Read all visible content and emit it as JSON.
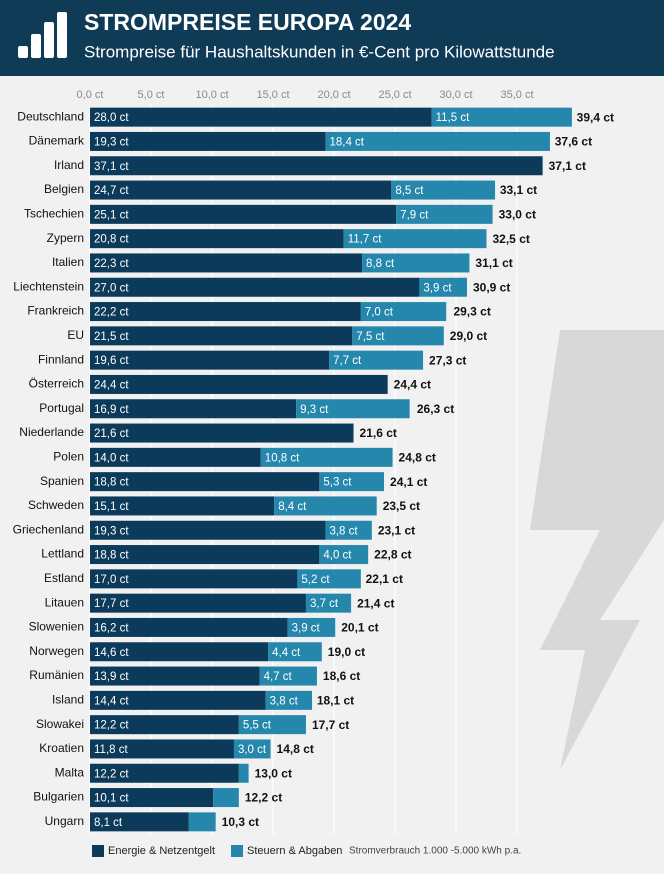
{
  "chart_data": {
    "type": "stacked-bar-horizontal",
    "title": "STROMPREISE EUROPA 2024",
    "subtitle": "Strompreise für Haushaltskunden in €-Cent pro Kilowattstunde",
    "note": "Stromverbrauch 1.000 -5.000 kWh p.a.",
    "categories": [
      "Deutschland",
      "Dänemark",
      "Irland",
      "Belgien",
      "Tschechien",
      "Zypern",
      "Italien",
      "Liechtenstein",
      "Frankreich",
      "EU",
      "Finnland",
      "Österreich",
      "Portugal",
      "Niederlande",
      "Polen",
      "Spanien",
      "Schweden",
      "Griechenland",
      "Lettland",
      "Estland",
      "Litauen",
      "Slowenien",
      "Norwegen",
      "Rumänien",
      "Island",
      "Slowakei",
      "Kroatien",
      "Malta",
      "Bulgarien",
      "Ungarn"
    ],
    "series": [
      {
        "name": "Energie & Netzentgelt",
        "color": "#0c3a5b",
        "values": [
          28.0,
          19.3,
          37.1,
          24.7,
          25.1,
          20.8,
          22.3,
          27.0,
          22.2,
          21.5,
          19.6,
          24.4,
          16.9,
          21.6,
          14.0,
          18.8,
          15.1,
          19.3,
          18.8,
          17.0,
          17.7,
          16.2,
          14.6,
          13.9,
          14.4,
          12.2,
          11.8,
          12.2,
          10.1,
          8.1
        ],
        "value_labels": [
          "28,0 ct",
          "19,3 ct",
          "37,1 ct",
          "24,7 ct",
          "25,1 ct",
          "20,8 ct",
          "22,3 ct",
          "27,0 ct",
          "22,2 ct",
          "21,5 ct",
          "19,6 ct",
          "24,4 ct",
          "16,9 ct",
          "21,6 ct",
          "14,0 ct",
          "18,8 ct",
          "15,1 ct",
          "19,3 ct",
          "18,8 ct",
          "17,0 ct",
          "17,7 ct",
          "16,2 ct",
          "14,6 ct",
          "13,9 ct",
          "14,4 ct",
          "12,2 ct",
          "11,8 ct",
          "12,2 ct",
          "10,1 ct",
          "8,1 ct"
        ]
      },
      {
        "name": "Steuern & Abgaben",
        "color": "#2687ad",
        "values": [
          11.5,
          18.4,
          null,
          8.5,
          7.9,
          11.7,
          8.8,
          3.9,
          7.0,
          7.5,
          7.7,
          null,
          9.3,
          null,
          10.8,
          5.3,
          8.4,
          3.8,
          4.0,
          5.2,
          3.7,
          3.9,
          4.4,
          4.7,
          3.8,
          5.5,
          3.0,
          0.8,
          2.1,
          2.2
        ],
        "value_labels": [
          "11,5 ct",
          "18,4 ct",
          null,
          "8,5 ct",
          "7,9 ct",
          "11,7 ct",
          "8,8 ct",
          "3,9 ct",
          "7,0 ct",
          "7,5 ct",
          "7,7 ct",
          null,
          "9,3 ct",
          null,
          "10,8 ct",
          "5,3 ct",
          "8,4 ct",
          "3,8 ct",
          "4,0 ct",
          "5,2 ct",
          "3,7 ct",
          "3,9 ct",
          "4,4 ct",
          "4,7 ct",
          "3,8 ct",
          "5,5 ct",
          "3,0 ct",
          null,
          null,
          null
        ]
      }
    ],
    "totals": [
      39.4,
      37.6,
      37.1,
      33.1,
      33.0,
      32.5,
      31.1,
      30.9,
      29.3,
      29.0,
      27.3,
      24.4,
      26.3,
      21.6,
      24.8,
      24.1,
      23.5,
      23.1,
      22.8,
      22.1,
      21.4,
      20.1,
      19.0,
      18.6,
      18.1,
      17.7,
      14.8,
      13.0,
      12.2,
      10.3
    ],
    "total_labels": [
      "39,4 ct",
      "37,6 ct",
      "37,1 ct",
      "33,1 ct",
      "33,0 ct",
      "32,5 ct",
      "31,1 ct",
      "30,9 ct",
      "29,3 ct",
      "29,0 ct",
      "27,3 ct",
      "24,4 ct",
      "26,3 ct",
      "21,6 ct",
      "24,8 ct",
      "24,1 ct",
      "23,5 ct",
      "23,1 ct",
      "22,8 ct",
      "22,1 ct",
      "21,4 ct",
      "20,1 ct",
      "19,0 ct",
      "18,6 ct",
      "18,1 ct",
      "17,7 ct",
      "14,8 ct",
      "13,0 ct",
      "12,2 ct",
      "10,3 ct"
    ],
    "xlim": [
      0,
      40
    ],
    "xticks": [
      {
        "value": 0,
        "label": "0,0 ct"
      },
      {
        "value": 5,
        "label": "5,0 ct"
      },
      {
        "value": 10,
        "label": "10,0 ct"
      },
      {
        "value": 15,
        "label": "15,0 ct"
      },
      {
        "value": 20,
        "label": "20,0 ct"
      },
      {
        "value": 25,
        "label": "25,0 ct"
      },
      {
        "value": 30,
        "label": "30,0 ct"
      },
      {
        "value": 35,
        "label": "35,0 ct"
      }
    ],
    "grid": true,
    "legend": "bottom"
  }
}
